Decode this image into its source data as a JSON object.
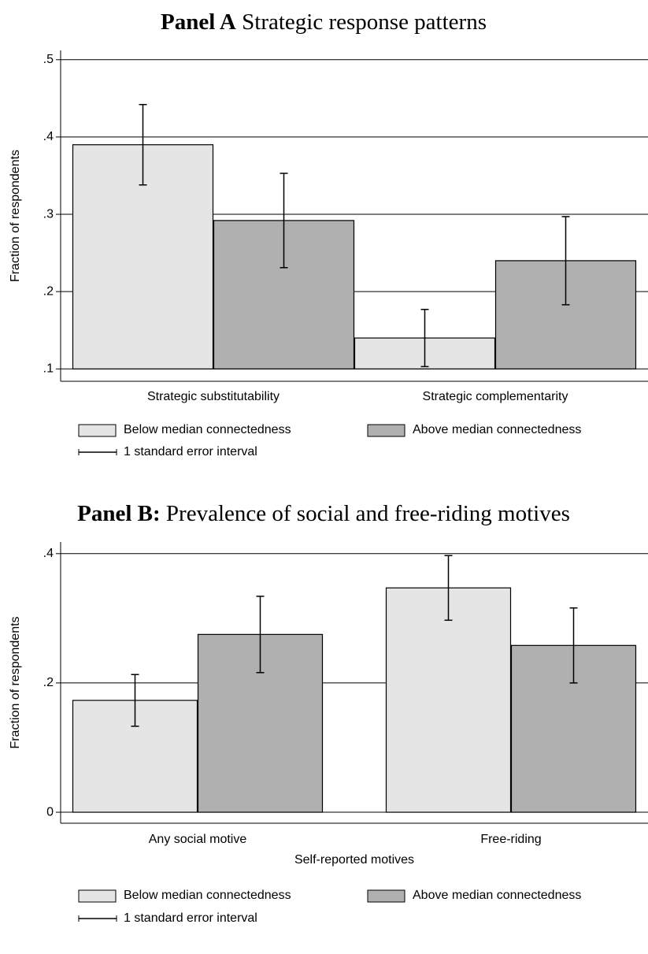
{
  "chart_data": [
    {
      "type": "bar",
      "title_label": "Panel A",
      "title": "Strategic response patterns",
      "ylabel": "Fraction of respondents",
      "categories": [
        "Strategic substitutability",
        "Strategic complementarity"
      ],
      "series": [
        {
          "name": "Below median connectedness",
          "color": "#e5e5e5",
          "values": [
            0.39,
            0.14
          ],
          "errors": [
            0.052,
            0.037
          ]
        },
        {
          "name": "Above median connectedness",
          "color": "#b0b0b0",
          "values": [
            0.292,
            0.24
          ],
          "errors": [
            0.061,
            0.057
          ]
        }
      ],
      "error_label": "1 standard error interval",
      "ylim": [
        0.084,
        0.512
      ],
      "yticks": [
        {
          "value": 0.1,
          "label": ".1"
        },
        {
          "value": 0.2,
          "label": ".2"
        },
        {
          "value": 0.3,
          "label": ".3"
        },
        {
          "value": 0.4,
          "label": ".4"
        },
        {
          "value": 0.5,
          "label": ".5"
        }
      ],
      "grid": true
    },
    {
      "type": "bar",
      "title_label": "Panel B:",
      "title": "Prevalence of social and free-riding motives",
      "ylabel": "Fraction of respondents",
      "xlabel": "Self-reported motives",
      "categories": [
        "Any social motive",
        "Free-riding"
      ],
      "series": [
        {
          "name": "Below median connectedness",
          "color": "#e5e5e5",
          "values": [
            0.173,
            0.347
          ],
          "errors": [
            0.04,
            0.05
          ]
        },
        {
          "name": "Above median connectedness",
          "color": "#b0b0b0",
          "values": [
            0.275,
            0.258
          ],
          "errors": [
            0.059,
            0.058
          ]
        }
      ],
      "error_label": "1 standard error interval",
      "ylim": [
        -0.017,
        0.418
      ],
      "yticks": [
        0,
        {
          "value": 0.2,
          "label": ".2"
        },
        {
          "value": 0.4,
          "label": ".4"
        }
      ],
      "grid": true
    }
  ]
}
